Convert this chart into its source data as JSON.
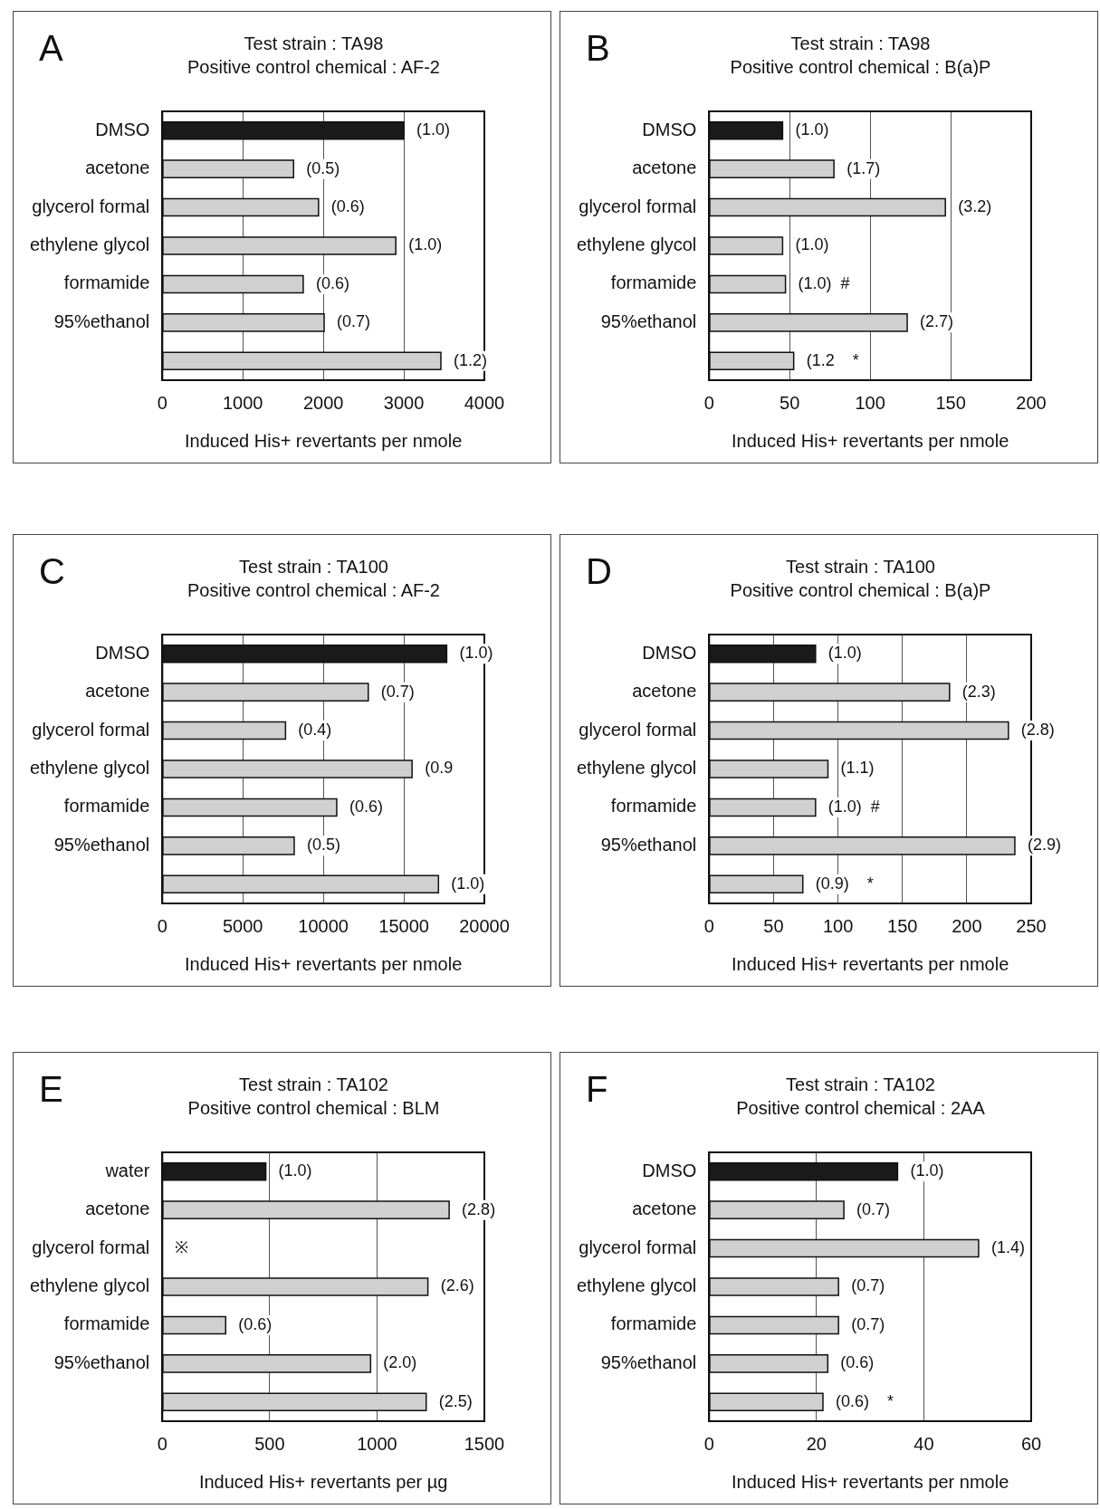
{
  "chart_data": [
    {
      "type": "bar",
      "orientation": "horizontal",
      "title": "Test strain : TA98",
      "subtitle": "Positive control chemical : AF-2",
      "xlabel": "Induced His+ revertants per nmole",
      "categories": [
        "DMSO",
        "acetone",
        "glycerol formal",
        "ethylene glycol",
        "formamide",
        "95%ethanol",
        null
      ],
      "values": [
        3000,
        1630,
        1940,
        2900,
        1750,
        2010,
        3460
      ],
      "colors": [
        "#1a1a1a",
        "#d0d0d0",
        "#d0d0d0",
        "#d0d0d0",
        "#d0d0d0",
        "#d0d0d0",
        "#d0d0d0"
      ],
      "annotations": [
        "A",
        {
          "text": "(1.0)",
          "x": 3000,
          "y": "DMSO"
        },
        {
          "text": "(0.5)",
          "x": 1630,
          "y": "acetone"
        },
        {
          "text": "(0.6)",
          "x": 1940,
          "y": "glycerol formal"
        },
        {
          "text": "(1.0)",
          "x": 2900,
          "y": "ethylene glycol"
        },
        {
          "text": "(0.6)",
          "x": 1750,
          "y": "formamide"
        },
        {
          "text": "(0.7)",
          "x": 2010,
          "y": "95%ethanol"
        },
        {
          "text": "(1.2)",
          "x": 3460
        }
      ],
      "xlim": [
        0,
        4000
      ],
      "xticks": [
        0,
        1000,
        2000,
        3000,
        4000
      ],
      "grid": "x"
    },
    {
      "type": "bar",
      "orientation": "horizontal",
      "title": "Test strain : TA98",
      "subtitle": "Positive control chemical : B(a)P",
      "xlabel": "Induced His+ revertants per nmole",
      "categories": [
        "DMSO",
        "acetone",
        "glycerol formal",
        "ethylene glycol",
        "formamide",
        "95%ethanol",
        null
      ],
      "values": [
        45.6,
        77.5,
        146.7,
        45.6,
        47.4,
        123,
        52.5
      ],
      "colors": [
        "#1a1a1a",
        "#d0d0d0",
        "#d0d0d0",
        "#d0d0d0",
        "#d0d0d0",
        "#d0d0d0",
        "#d0d0d0"
      ],
      "annotations": [
        "B",
        {
          "text": "(1.0)",
          "x": 45.6,
          "y": "DMSO"
        },
        {
          "text": "(1.7)",
          "x": 77.5,
          "y": "acetone"
        },
        {
          "text": "(3.2)",
          "x": 146.7,
          "y": "glycerol formal"
        },
        {
          "text": "(1.0)",
          "x": 45.6,
          "y": "ethylene glycol"
        },
        {
          "text": "(1.0)  #",
          "x": 47.4,
          "y": "formamide"
        },
        {
          "text": "(2.7)",
          "x": 123,
          "y": "95%ethanol"
        },
        {
          "text": "(1.2    *",
          "x": 52.5
        }
      ],
      "xlim": [
        0,
        200
      ],
      "xticks": [
        0,
        50,
        100,
        150,
        200
      ],
      "grid": "x"
    },
    {
      "type": "bar",
      "orientation": "horizontal",
      "title": "Test strain : TA100",
      "subtitle": "Positive control chemical : AF-2",
      "xlabel": "Induced His+ revertants per nmole",
      "categories": [
        "DMSO",
        "acetone",
        "glycerol formal",
        "ethylene glycol",
        "formamide",
        "95%ethanol",
        null
      ],
      "values": [
        17660,
        12790,
        7650,
        15510,
        10830,
        8190,
        17150
      ],
      "colors": [
        "#1a1a1a",
        "#d0d0d0",
        "#d0d0d0",
        "#d0d0d0",
        "#d0d0d0",
        "#d0d0d0",
        "#d0d0d0"
      ],
      "annotations": [
        "C",
        {
          "text": "(1.0)",
          "x": 17660,
          "y": "DMSO"
        },
        {
          "text": "(0.7)",
          "x": 12790,
          "y": "acetone"
        },
        {
          "text": "(0.4)",
          "x": 7650,
          "y": "glycerol formal"
        },
        {
          "text": "(0.9",
          "x": 15510,
          "y": "ethylene glycol"
        },
        {
          "text": "(0.6)",
          "x": 10830,
          "y": "formamide"
        },
        {
          "text": "(0.5)",
          "x": 8190,
          "y": "95%ethanol"
        },
        {
          "text": "(1.0)",
          "x": 17150
        }
      ],
      "xlim": [
        0,
        20000
      ],
      "xticks": [
        0,
        5000,
        10000,
        15000,
        20000
      ],
      "grid": "x"
    },
    {
      "type": "bar",
      "orientation": "horizontal",
      "title": "Test strain : TA100",
      "subtitle": "Positive control chemical : B(a)P",
      "xlabel": "Induced His+ revertants per nmole",
      "categories": [
        "DMSO",
        "acetone",
        "glycerol formal",
        "ethylene glycol",
        "formamide",
        "95%ethanol",
        null
      ],
      "values": [
        82.6,
        186.6,
        232.3,
        92.2,
        82.6,
        237.3,
        72.7
      ],
      "colors": [
        "#1a1a1a",
        "#d0d0d0",
        "#d0d0d0",
        "#d0d0d0",
        "#d0d0d0",
        "#d0d0d0",
        "#d0d0d0"
      ],
      "annotations": [
        "D",
        {
          "text": "(1.0)",
          "x": 82.6,
          "y": "DMSO"
        },
        {
          "text": "(2.3)",
          "x": 186.6,
          "y": "acetone"
        },
        {
          "text": "(2.8)",
          "x": 232.3,
          "y": "glycerol formal"
        },
        {
          "text": "(1.1)",
          "x": 92.2,
          "y": "ethylene glycol"
        },
        {
          "text": "(1.0)  #",
          "x": 82.6,
          "y": "formamide"
        },
        {
          "text": "(2.9)",
          "x": 237.3,
          "y": "95%ethanol"
        },
        {
          "text": "(0.9)    *",
          "x": 72.7
        }
      ],
      "xlim": [
        0,
        250
      ],
      "xticks": [
        0,
        50,
        100,
        150,
        200,
        250
      ],
      "grid": "x"
    },
    {
      "type": "bar",
      "orientation": "horizontal",
      "title": "Test strain : TA102",
      "subtitle": "Positive control chemical : BLM",
      "xlabel": "Induced His+ revertants per µg",
      "categories": [
        "water",
        "acetone",
        "glycerol formal",
        "ethylene glycol",
        "formamide",
        "95%ethanol",
        null
      ],
      "values": [
        482,
        1336,
        null,
        1237,
        295,
        970,
        1229
      ],
      "colors": [
        "#1a1a1a",
        "#d0d0d0",
        "#d0d0d0",
        "#d0d0d0",
        "#d0d0d0",
        "#d0d0d0",
        "#d0d0d0"
      ],
      "annotations": [
        "E",
        {
          "text": "(1.0)",
          "x": 482,
          "y": "water"
        },
        {
          "text": "(2.8)",
          "x": 1336,
          "y": "acetone"
        },
        {
          "text": "※",
          "y": "glycerol formal"
        },
        {
          "text": "(2.6)",
          "x": 1237,
          "y": "ethylene glycol"
        },
        {
          "text": "(0.6)",
          "x": 295,
          "y": "formamide"
        },
        {
          "text": "(2.0)",
          "x": 970,
          "y": "95%ethanol"
        },
        {
          "text": "(2.5)",
          "x": 1229
        }
      ],
      "xlim": [
        0,
        1500
      ],
      "xticks": [
        0,
        500,
        1000,
        1500
      ],
      "grid": "x"
    },
    {
      "type": "bar",
      "orientation": "horizontal",
      "title": "Test strain : TA102",
      "subtitle": "Positive control chemical : 2AA",
      "xlabel": "Induced His+ revertants per nmole",
      "categories": [
        "DMSO",
        "acetone",
        "glycerol formal",
        "ethylene glycol",
        "formamide",
        "95%ethanol",
        null
      ],
      "values": [
        35.1,
        25.1,
        50.2,
        24.1,
        24.1,
        22.1,
        21.2
      ],
      "colors": [
        "#1a1a1a",
        "#d0d0d0",
        "#d0d0d0",
        "#d0d0d0",
        "#d0d0d0",
        "#d0d0d0",
        "#d0d0d0"
      ],
      "annotations": [
        "F",
        {
          "text": "(1.0)",
          "x": 35.1,
          "y": "DMSO"
        },
        {
          "text": "(0.7)",
          "x": 25.1,
          "y": "acetone"
        },
        {
          "text": "(1.4)",
          "x": 50.2,
          "y": "glycerol formal"
        },
        {
          "text": "(0.7)",
          "x": 24.1,
          "y": "ethylene glycol"
        },
        {
          "text": "(0.7)",
          "x": 24.1,
          "y": "formamide"
        },
        {
          "text": "(0.6)",
          "x": 22.1,
          "y": "95%ethanol"
        },
        {
          "text": "(0.6)    *",
          "x": 21.2
        }
      ],
      "xlim": [
        0,
        60
      ],
      "xticks": [
        0,
        20,
        40,
        60
      ],
      "grid": "x"
    }
  ]
}
